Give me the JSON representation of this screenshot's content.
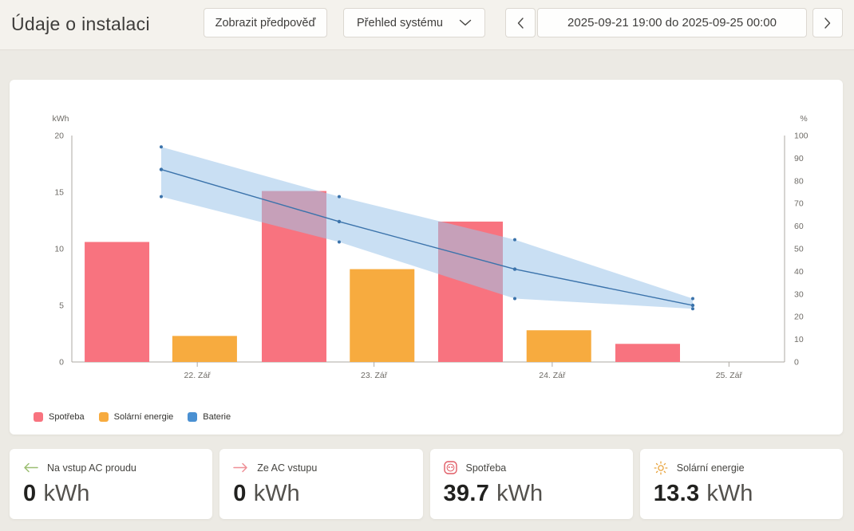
{
  "header": {
    "title": "Údaje o instalaci",
    "forecast_button": "Zobrazit předpověď",
    "view_select": {
      "value": "Přehled systému"
    },
    "date_range": "2025-09-21 19:00 do 2025-09-25 00:00"
  },
  "icons": {
    "prev": "chevron-left",
    "next": "chevron-right",
    "view_dropdown": "chevron-down",
    "card_ac_in": "arrow-left",
    "card_ac_out": "arrow-right",
    "card_consumption": "power-socket",
    "card_solar": "sun"
  },
  "colors": {
    "consumption": "#F8737F",
    "solar": "#F7AB3F",
    "battery_line": "#3B73AB",
    "battery_band": "rgba(157,197,233,0.55)",
    "battery_legend": "#4A90D2",
    "axis": "#ADA9A3",
    "axis_text": "#6E6B66"
  },
  "chart_data": {
    "type": "combo-bar-line-band",
    "left_axis": {
      "label": "kWh",
      "min": 0,
      "max": 20,
      "ticks": [
        0,
        5,
        10,
        15,
        20
      ]
    },
    "right_axis": {
      "label": "%",
      "min": 0,
      "max": 100,
      "ticks": [
        0,
        10,
        20,
        30,
        40,
        50,
        60,
        70,
        80,
        90,
        100
      ]
    },
    "x_ticks": [
      {
        "label": "22. Zář",
        "pos": 0.176
      },
      {
        "label": "23. Zář",
        "pos": 0.424
      },
      {
        "label": "24. Zář",
        "pos": 0.674
      },
      {
        "label": "25. Zář",
        "pos": 0.922
      }
    ],
    "bar_width": 0.0907,
    "bars": [
      {
        "series": "Spotřeba",
        "pos": 0.018,
        "value": 10.6
      },
      {
        "series": "Solární energie",
        "pos": 0.141,
        "value": 2.3
      },
      {
        "series": "Spotřeba",
        "pos": 0.2665,
        "value": 15.1
      },
      {
        "series": "Solární energie",
        "pos": 0.39,
        "value": 8.2
      },
      {
        "series": "Spotřeba",
        "pos": 0.514,
        "value": 12.4
      },
      {
        "series": "Solární energie",
        "pos": 0.638,
        "value": 2.8
      },
      {
        "series": "Spotřeba",
        "pos": 0.7626,
        "value": 1.6
      }
    ],
    "battery_series": {
      "name": "Baterie",
      "unit": "%",
      "x": [
        0.1254,
        0.3751,
        0.6215,
        0.8712
      ],
      "values": [
        85,
        62,
        41,
        25
      ],
      "upper": [
        95,
        73,
        54,
        28
      ],
      "lower": [
        73,
        53,
        28,
        23.5
      ]
    }
  },
  "legend": [
    {
      "label": "Spotřeba",
      "color": "#F8737F"
    },
    {
      "label": "Solární energie",
      "color": "#F7AB3F"
    },
    {
      "label": "Baterie",
      "color": "#4A90D2"
    }
  ],
  "cards": [
    {
      "label": "Na vstup AC proudu",
      "value": "0",
      "unit": "kWh"
    },
    {
      "label": "Ze AC vstupu",
      "value": "0",
      "unit": "kWh"
    },
    {
      "label": "Spotřeba",
      "value": "39.7",
      "unit": "kWh"
    },
    {
      "label": "Solární energie",
      "value": "13.3",
      "unit": "kWh"
    }
  ]
}
